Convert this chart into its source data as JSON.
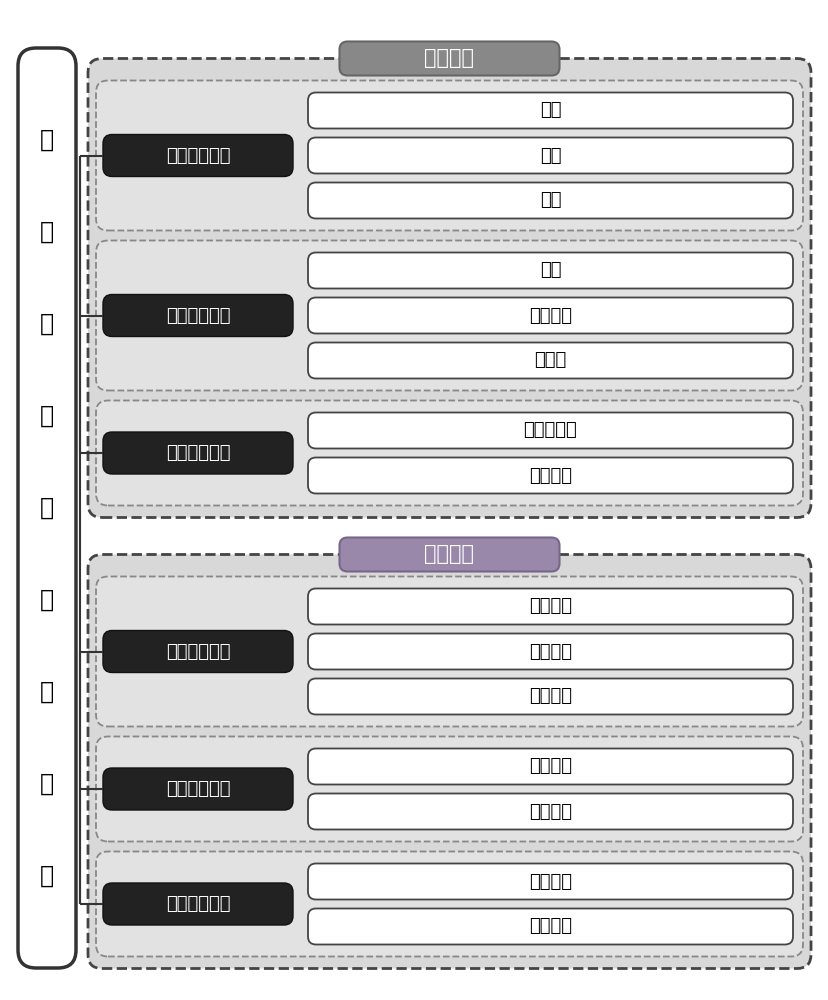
{
  "section1_label": "刚性要素",
  "section2_label": "柔性要素",
  "section1_hdr_color": "#888888",
  "section2_hdr_color": "#9988aa",
  "bg_color": "#ffffff",
  "dark_box_color": "#222222",
  "dark_box_text_color": "#ffffff",
  "light_box_color": "#ffffff",
  "light_box_border_color": "#444444",
  "group_bg_color": "#d8d8d8",
  "inner_group_bg_color": "#e2e2e2",
  "outer_dashed_color": "#555555",
  "inner_dashed_color": "#888888",
  "left_box_chars": [
    "城",
    "市",
    "分",
    "区",
    "的",
    "划",
    "分",
    "要",
    "素"
  ],
  "groups": [
    {
      "section": 0,
      "label": "自然边界要素",
      "items": [
        "山体",
        "湖泊",
        "河流"
      ]
    },
    {
      "section": 0,
      "label": "人工边界要素",
      "items": [
        "铁路",
        "高速公路",
        "快速路"
      ]
    },
    {
      "section": 0,
      "label": "行政边界要素",
      "items": [
        "行政区边界",
        "街道边界"
      ]
    },
    {
      "section": 1,
      "label": "规划调控要素",
      "items": [
        "组团边界",
        "分区边界",
        "新城边界"
      ]
    },
    {
      "section": 1,
      "label": "服务人群要素",
      "items": [
        "居住人口",
        "就业人口"
      ]
    },
    {
      "section": 1,
      "label": "既有基础要素",
      "items": [
        "既有中心",
        "潜力识别"
      ]
    }
  ]
}
